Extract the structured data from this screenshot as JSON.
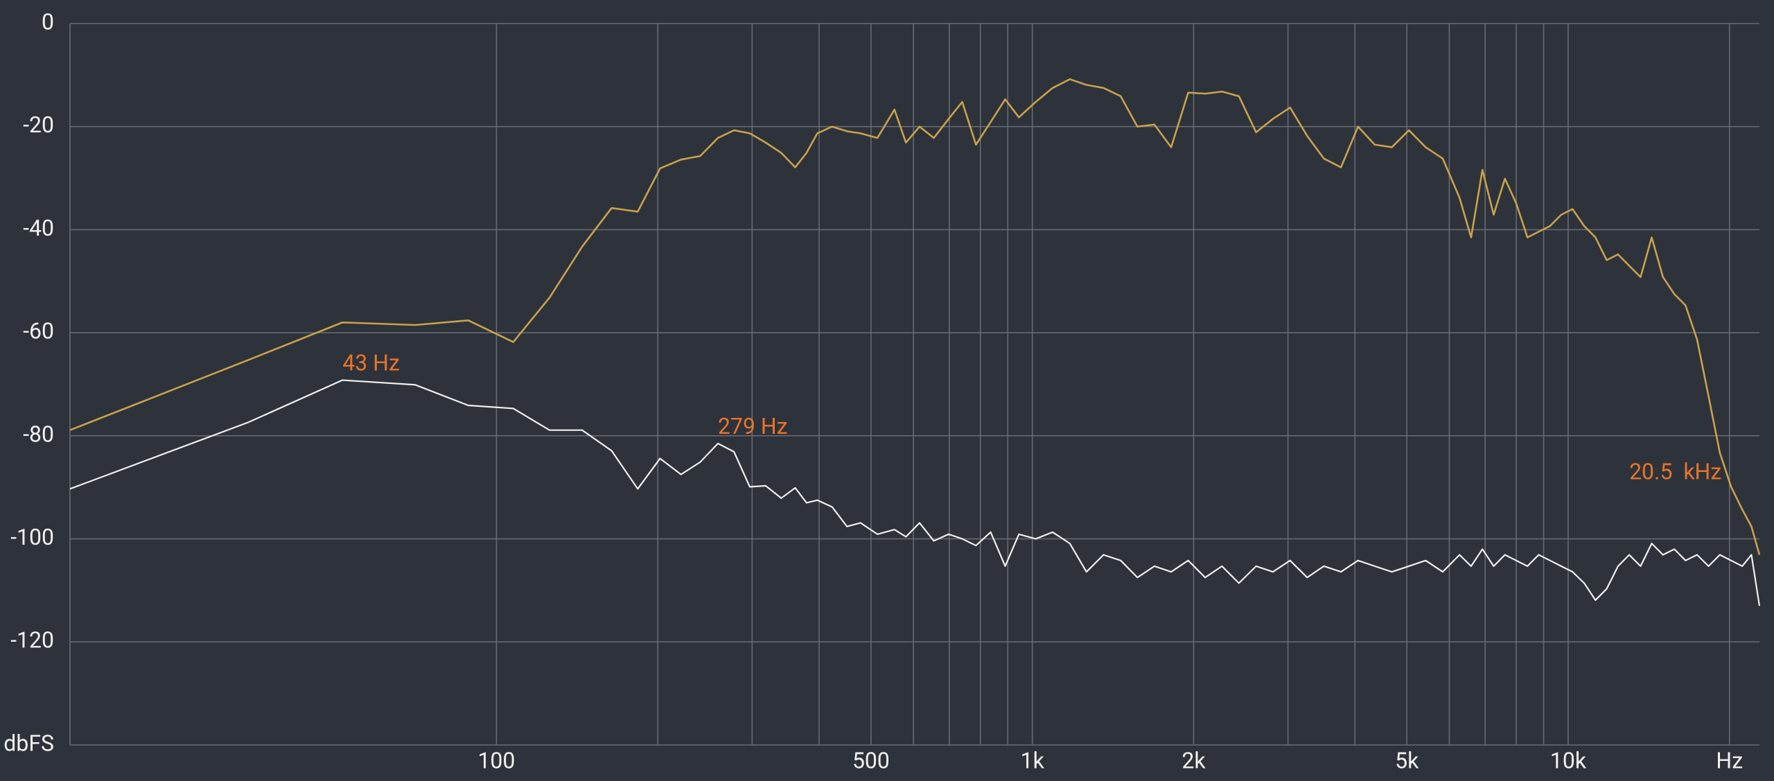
{
  "chart_data": {
    "type": "line",
    "xscale": "log",
    "grid": true,
    "background": "#2e333b",
    "grid_color": "#666b73",
    "annotation_color": "#e8752a",
    "xlim": [
      16,
      22750
    ],
    "ylim": [
      -140,
      0
    ],
    "yticks": [
      0,
      -20,
      -40,
      -60,
      -80,
      -100,
      -120,
      {
        "value": -140,
        "label": "dbFS"
      }
    ],
    "xticks": [
      100,
      500,
      {
        "value": 1000,
        "label": "1k"
      },
      {
        "value": 2000,
        "label": "2k"
      },
      {
        "value": 5000,
        "label": "5k"
      },
      {
        "value": 10000,
        "label": "10k"
      },
      {
        "value": 20000,
        "label": "Hz"
      }
    ],
    "minor_xticks": [
      200,
      300,
      400,
      600,
      700,
      800,
      900,
      3000,
      4000,
      6000,
      7000,
      8000,
      9000
    ],
    "x": [
      16,
      34.4,
      51.6,
      70.5,
      88.6,
      107.5,
      125.6,
      144.5,
      164,
      183.5,
      202,
      221,
      240,
      259,
      277.5,
      297,
      318,
      340,
      361,
      379,
      397,
      423,
      451,
      478,
      514,
      553,
      581,
      616,
      655,
      698,
      740,
      785,
      836,
      890,
      944,
      1015,
      1091,
      1175,
      1262,
      1358,
      1462,
      1571,
      1690,
      1816,
      1954,
      2102,
      2259,
      2430,
      2616,
      2812,
      3027,
      3258,
      3500,
      3767,
      4054,
      4355,
      4688,
      5045,
      5420,
      5834,
      6270,
      6590,
      6918,
      7261,
      7621,
      8000,
      8395,
      8810,
      9250,
      9705,
      10190,
      10715,
      11245,
      11800,
      12390,
      13000,
      13650,
      14320,
      15030,
      15780,
      16560,
      17400,
      18280,
      19190,
      20140,
      21130,
      21980,
      22750
    ],
    "series": [
      {
        "color": "#c9a24c",
        "values": [
          -78.9,
          -65.3,
          -58.0,
          -58.5,
          -57.6,
          -61.8,
          -53.2,
          -43.3,
          -35.8,
          -36.5,
          -28.1,
          -26.4,
          -25.7,
          -22.2,
          -20.7,
          -21.3,
          -23.1,
          -25.1,
          -27.9,
          -25.1,
          -21.3,
          -20.0,
          -20.9,
          -21.3,
          -22.2,
          -16.7,
          -23.1,
          -20.0,
          -22.2,
          -18.5,
          -15.2,
          -23.5,
          -19.1,
          -14.7,
          -18.2,
          -15.2,
          -12.5,
          -10.8,
          -11.9,
          -12.5,
          -14.1,
          -20.0,
          -19.6,
          -24.0,
          -13.4,
          -13.6,
          -13.2,
          -14.1,
          -21.1,
          -18.5,
          -16.3,
          -21.8,
          -26.2,
          -27.9,
          -20.0,
          -23.5,
          -24.0,
          -20.7,
          -24.0,
          -26.2,
          -33.8,
          -41.5,
          -28.4,
          -37.1,
          -30.1,
          -34.9,
          -41.5,
          -40.4,
          -39.3,
          -37.1,
          -36.0,
          -39.3,
          -41.5,
          -45.9,
          -44.8,
          -47.0,
          -49.2,
          -41.5,
          -49.2,
          -52.5,
          -54.7,
          -61.3,
          -72.3,
          -83.3,
          -89.9,
          -94.3,
          -97.6,
          -103.1
        ]
      },
      {
        "color": "#f0f0f0",
        "values": [
          -90.3,
          -77.4,
          -69.2,
          -70.1,
          -74.1,
          -74.7,
          -78.9,
          -78.9,
          -82.9,
          -90.3,
          -84.4,
          -87.5,
          -85.1,
          -81.5,
          -83.1,
          -89.9,
          -89.7,
          -92.1,
          -90.1,
          -93.0,
          -92.5,
          -93.8,
          -97.6,
          -96.9,
          -99.1,
          -98.2,
          -99.6,
          -96.9,
          -100.4,
          -99.1,
          -100.0,
          -101.3,
          -98.7,
          -105.3,
          -99.1,
          -100.0,
          -98.7,
          -100.9,
          -106.4,
          -103.1,
          -104.2,
          -107.5,
          -105.3,
          -106.4,
          -104.2,
          -107.5,
          -105.3,
          -108.6,
          -105.3,
          -106.4,
          -104.2,
          -107.5,
          -105.3,
          -106.4,
          -104.2,
          -105.3,
          -106.4,
          -105.3,
          -104.2,
          -106.4,
          -103.1,
          -105.3,
          -102.0,
          -105.3,
          -103.1,
          -104.2,
          -105.3,
          -103.1,
          -104.2,
          -105.3,
          -106.4,
          -108.6,
          -111.9,
          -109.7,
          -105.3,
          -103.1,
          -105.3,
          -100.9,
          -103.1,
          -102.0,
          -104.2,
          -103.1,
          -105.3,
          -103.1,
          -104.2,
          -105.3,
          -103.1,
          -113.0
        ]
      }
    ],
    "annotations": [
      {
        "text": "43 Hz",
        "x": 51.6,
        "y": -66.2
      },
      {
        "text": "279 Hz",
        "x": 259,
        "y": -78.5
      },
      {
        "text": "20.5  kHz",
        "x": 13000,
        "y": -87.3
      }
    ]
  }
}
